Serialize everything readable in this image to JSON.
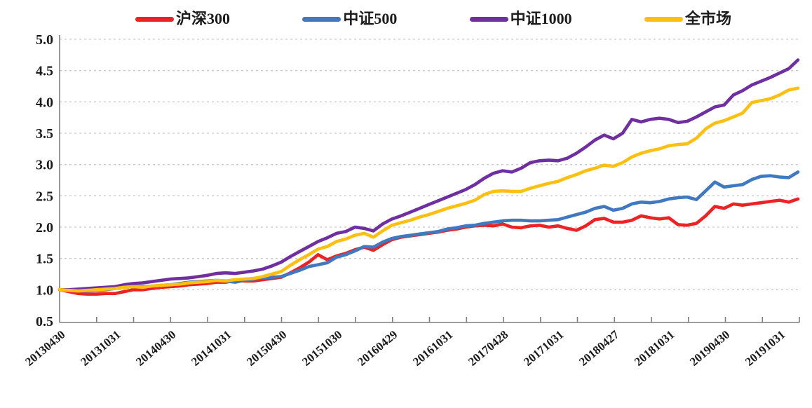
{
  "chart_data": {
    "type": "line",
    "title": "",
    "xlabel": "",
    "ylabel": "",
    "ylim": [
      0.5,
      5.0
    ],
    "y_ticks": [
      0.5,
      1.0,
      1.5,
      2.0,
      2.5,
      3.0,
      3.5,
      4.0,
      4.5,
      5.0
    ],
    "grid": "horizontal-dashed",
    "grid_color": "#c9c9c9",
    "axis_color": "#7f7f7f",
    "text_color": "#1b1b1b",
    "legend_position": "top",
    "x_tick_labels": [
      "20130430",
      "20131031",
      "20140430",
      "20141031",
      "20150430",
      "20151030",
      "20160429",
      "20161031",
      "20170428",
      "20171031",
      "20180427",
      "20181031",
      "20190430",
      "20191031"
    ],
    "label_every_n_points": 6,
    "x_minor_tick_count": 20,
    "series": [
      {
        "name": "沪深300",
        "color": "#ed2224",
        "values": [
          1.0,
          0.97,
          0.94,
          0.93,
          0.93,
          0.94,
          0.94,
          0.97,
          1.0,
          1.0,
          1.02,
          1.04,
          1.05,
          1.06,
          1.08,
          1.09,
          1.1,
          1.12,
          1.12,
          1.15,
          1.14,
          1.14,
          1.16,
          1.18,
          1.2,
          1.27,
          1.35,
          1.44,
          1.56,
          1.48,
          1.54,
          1.58,
          1.64,
          1.68,
          1.63,
          1.72,
          1.8,
          1.84,
          1.86,
          1.88,
          1.9,
          1.92,
          1.95,
          1.97,
          2.0,
          2.02,
          2.03,
          2.02,
          2.05,
          2.0,
          1.99,
          2.02,
          2.03,
          2.0,
          2.02,
          1.98,
          1.95,
          2.02,
          2.12,
          2.14,
          2.08,
          2.08,
          2.11,
          2.18,
          2.15,
          2.13,
          2.15,
          2.04,
          2.03,
          2.06,
          2.18,
          2.33,
          2.3,
          2.37,
          2.35,
          2.37,
          2.39,
          2.41,
          2.43,
          2.4,
          2.45
        ]
      },
      {
        "name": "中证500",
        "color": "#4079bf",
        "values": [
          1.0,
          0.99,
          0.98,
          0.98,
          0.99,
          1.0,
          1.02,
          1.04,
          1.05,
          1.05,
          1.06,
          1.07,
          1.08,
          1.1,
          1.12,
          1.13,
          1.14,
          1.15,
          1.14,
          1.12,
          1.15,
          1.17,
          1.19,
          1.2,
          1.21,
          1.26,
          1.31,
          1.37,
          1.4,
          1.43,
          1.52,
          1.56,
          1.62,
          1.69,
          1.68,
          1.76,
          1.82,
          1.85,
          1.87,
          1.89,
          1.91,
          1.93,
          1.97,
          1.99,
          2.02,
          2.03,
          2.06,
          2.08,
          2.1,
          2.11,
          2.11,
          2.1,
          2.1,
          2.11,
          2.12,
          2.16,
          2.2,
          2.24,
          2.3,
          2.33,
          2.27,
          2.3,
          2.37,
          2.4,
          2.39,
          2.41,
          2.45,
          2.47,
          2.48,
          2.44,
          2.58,
          2.72,
          2.64,
          2.66,
          2.68,
          2.76,
          2.81,
          2.82,
          2.8,
          2.79,
          2.88
        ]
      },
      {
        "name": "中证1000",
        "color": "#6f2fa0",
        "values": [
          1.0,
          1.0,
          1.01,
          1.02,
          1.03,
          1.04,
          1.05,
          1.08,
          1.1,
          1.11,
          1.13,
          1.15,
          1.17,
          1.18,
          1.19,
          1.21,
          1.23,
          1.26,
          1.27,
          1.26,
          1.28,
          1.3,
          1.33,
          1.38,
          1.44,
          1.53,
          1.61,
          1.69,
          1.77,
          1.83,
          1.9,
          1.93,
          2.0,
          1.98,
          1.94,
          2.05,
          2.13,
          2.18,
          2.24,
          2.3,
          2.36,
          2.42,
          2.48,
          2.54,
          2.6,
          2.68,
          2.78,
          2.86,
          2.9,
          2.88,
          2.94,
          3.03,
          3.06,
          3.07,
          3.06,
          3.1,
          3.18,
          3.28,
          3.39,
          3.47,
          3.41,
          3.5,
          3.72,
          3.68,
          3.72,
          3.74,
          3.72,
          3.67,
          3.69,
          3.76,
          3.84,
          3.92,
          3.95,
          4.11,
          4.18,
          4.27,
          4.33,
          4.39,
          4.46,
          4.53,
          4.67
        ]
      },
      {
        "name": "全市场",
        "color": "#fdc010",
        "values": [
          1.0,
          0.99,
          0.98,
          0.99,
          1.0,
          1.01,
          1.02,
          1.04,
          1.05,
          1.04,
          1.06,
          1.07,
          1.08,
          1.09,
          1.11,
          1.12,
          1.13,
          1.15,
          1.14,
          1.16,
          1.17,
          1.18,
          1.21,
          1.25,
          1.29,
          1.39,
          1.48,
          1.56,
          1.65,
          1.69,
          1.77,
          1.81,
          1.87,
          1.9,
          1.84,
          1.94,
          2.03,
          2.07,
          2.11,
          2.16,
          2.2,
          2.25,
          2.3,
          2.34,
          2.38,
          2.43,
          2.52,
          2.57,
          2.58,
          2.57,
          2.57,
          2.62,
          2.66,
          2.7,
          2.73,
          2.79,
          2.84,
          2.9,
          2.94,
          2.99,
          2.97,
          3.03,
          3.12,
          3.18,
          3.22,
          3.25,
          3.3,
          3.32,
          3.33,
          3.42,
          3.57,
          3.66,
          3.7,
          3.76,
          3.82,
          3.99,
          4.02,
          4.05,
          4.11,
          4.19,
          4.22
        ]
      }
    ]
  }
}
